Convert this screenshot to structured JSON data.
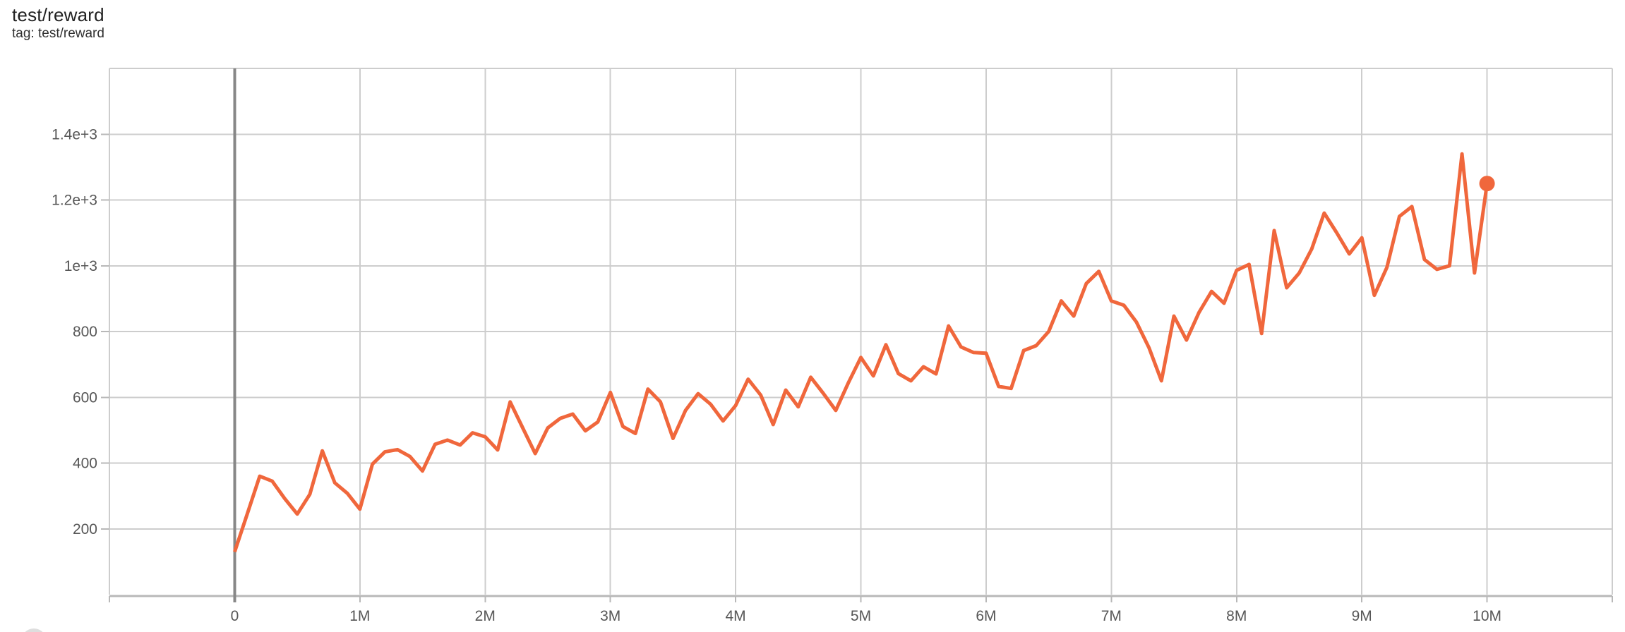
{
  "header": {
    "title": "test/reward",
    "tag_line": "tag: test/reward"
  },
  "colors": {
    "line": "#F0673C",
    "gridline": "#cdcdcd",
    "axis_line": "#b8b8b8",
    "zero_line": "#878787",
    "tick_text": "#575757",
    "title_text": "#212121",
    "corner_button": "#dedede"
  },
  "chart_data": {
    "type": "line",
    "title": "test/reward",
    "xlabel": "",
    "ylabel": "",
    "legend": [],
    "grid": true,
    "xlim_millions": [
      -1,
      11
    ],
    "ylim": [
      0,
      1600
    ],
    "x_ticks": [
      {
        "millions": 0,
        "label": "0"
      },
      {
        "millions": 1,
        "label": "1M"
      },
      {
        "millions": 2,
        "label": "2M"
      },
      {
        "millions": 3,
        "label": "3M"
      },
      {
        "millions": 4,
        "label": "4M"
      },
      {
        "millions": 5,
        "label": "5M"
      },
      {
        "millions": 6,
        "label": "6M"
      },
      {
        "millions": 7,
        "label": "7M"
      },
      {
        "millions": 8,
        "label": "8M"
      },
      {
        "millions": 9,
        "label": "9M"
      },
      {
        "millions": 10,
        "label": "10M"
      }
    ],
    "y_ticks": [
      {
        "value": 200,
        "label": "200"
      },
      {
        "value": 400,
        "label": "400"
      },
      {
        "value": 600,
        "label": "600"
      },
      {
        "value": 800,
        "label": "800"
      },
      {
        "value": 1000,
        "label": "1e+3"
      },
      {
        "value": 1200,
        "label": "1.2e+3"
      },
      {
        "value": 1400,
        "label": "1.4e+3"
      }
    ],
    "y_grid_extra": [
      1600
    ],
    "series": [
      {
        "name": "test/reward",
        "x_start_millions": 0,
        "x_step_millions": 0.1,
        "values": [
          130,
          245,
          360,
          345,
          292,
          245,
          305,
          437,
          340,
          308,
          260,
          397,
          434,
          441,
          420,
          376,
          457,
          470,
          455,
          492,
          480,
          440,
          586,
          507,
          429,
          507,
          536,
          549,
          498,
          525,
          615,
          511,
          490,
          625,
          586,
          475,
          560,
          611,
          579,
          528,
          575,
          655,
          607,
          517,
          622,
          571,
          661,
          612,
          560,
          644,
          721,
          665,
          760,
          672,
          650,
          693,
          671,
          817,
          753,
          736,
          734,
          633,
          627,
          742,
          757,
          800,
          893,
          847,
          946,
          983,
          893,
          880,
          829,
          751,
          650,
          847,
          774,
          858,
          922,
          886,
          986,
          1004,
          794,
          1107,
          933,
          978,
          1051,
          1160,
          1100,
          1036,
          1085,
          910,
          995,
          1150,
          1180,
          1019,
          989,
          1000,
          1340,
          978,
          1250
        ],
        "end_marker": true,
        "last_point": {
          "x_millions": 10.0,
          "value": 1250
        }
      }
    ]
  }
}
